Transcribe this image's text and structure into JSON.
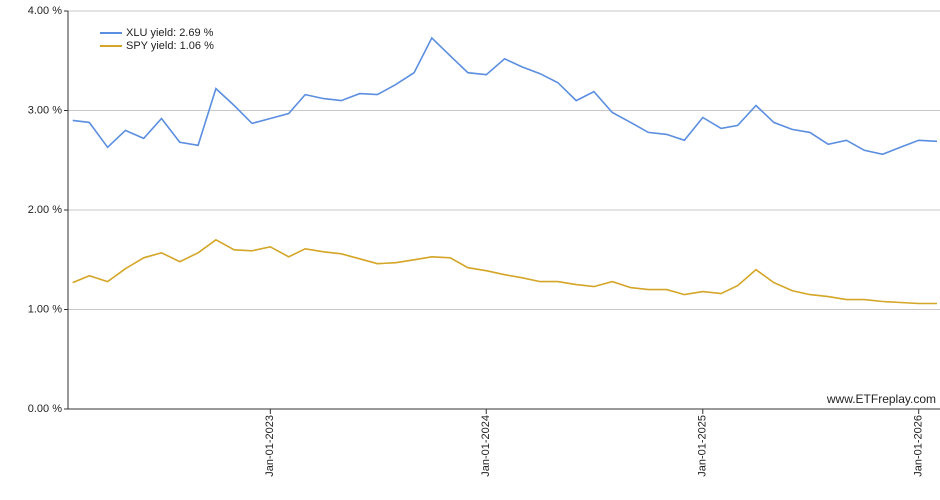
{
  "chart_data": {
    "type": "line",
    "x": [
      "2022-02-01",
      "2022-03-01",
      "2022-04-01",
      "2022-05-01",
      "2022-06-01",
      "2022-07-01",
      "2022-08-01",
      "2022-09-01",
      "2022-10-01",
      "2022-11-01",
      "2022-12-01",
      "2023-01-01",
      "2023-02-01",
      "2023-03-01",
      "2023-04-01",
      "2023-05-01",
      "2023-06-01",
      "2023-07-01",
      "2023-08-01",
      "2023-09-01",
      "2023-10-01",
      "2023-11-01",
      "2023-12-01",
      "2024-01-01",
      "2024-02-01",
      "2024-03-01",
      "2024-04-01",
      "2024-05-01",
      "2024-06-01",
      "2024-07-01",
      "2024-08-01",
      "2024-09-01",
      "2024-10-01",
      "2024-11-01",
      "2024-12-01",
      "2025-01-01",
      "2025-02-01",
      "2025-03-01",
      "2025-04-01",
      "2025-05-01",
      "2025-06-01",
      "2025-07-01",
      "2025-08-01",
      "2025-09-01",
      "2025-10-01",
      "2025-11-01",
      "2025-12-01",
      "2026-01-01",
      "2026-02-01"
    ],
    "series": [
      {
        "name": "XLU yield: 2.69 %",
        "color": "#5b8ee0",
        "values": [
          2.9,
          2.88,
          2.63,
          2.8,
          2.72,
          2.92,
          2.68,
          2.65,
          3.22,
          3.05,
          2.87,
          2.92,
          2.97,
          3.16,
          3.12,
          3.1,
          3.17,
          3.16,
          3.26,
          3.38,
          3.73,
          3.55,
          3.38,
          3.36,
          3.52,
          3.44,
          3.37,
          3.28,
          3.1,
          3.19,
          2.98,
          2.88,
          2.78,
          2.76,
          2.7,
          2.93,
          2.82,
          2.85,
          3.05,
          2.88,
          2.81,
          2.78,
          2.66,
          2.7,
          2.6,
          2.56,
          2.63,
          2.7,
          2.69
        ]
      },
      {
        "name": "SPY yield: 1.06 %",
        "color": "#d4a526",
        "values": [
          1.27,
          1.34,
          1.28,
          1.41,
          1.52,
          1.57,
          1.48,
          1.57,
          1.7,
          1.6,
          1.59,
          1.63,
          1.53,
          1.61,
          1.58,
          1.56,
          1.51,
          1.46,
          1.47,
          1.5,
          1.53,
          1.52,
          1.42,
          1.39,
          1.35,
          1.32,
          1.28,
          1.28,
          1.25,
          1.23,
          1.28,
          1.22,
          1.2,
          1.2,
          1.15,
          1.18,
          1.16,
          1.24,
          1.4,
          1.27,
          1.19,
          1.15,
          1.13,
          1.1,
          1.1,
          1.08,
          1.07,
          1.06,
          1.06
        ]
      }
    ],
    "xlim": [
      "2022-01-24",
      "2026-02-06"
    ],
    "xticks": [
      {
        "value": "2023-01-01",
        "label": "Jan-01-2023"
      },
      {
        "value": "2024-01-01",
        "label": "Jan-01-2024"
      },
      {
        "value": "2025-01-01",
        "label": "Jan-01-2025"
      },
      {
        "value": "2026-01-01",
        "label": "Jan-01-2026"
      }
    ],
    "ylim": [
      0,
      4
    ],
    "yticks": [
      {
        "value": 0,
        "label": "0.00 %"
      },
      {
        "value": 1,
        "label": "1.00 %"
      },
      {
        "value": 2,
        "label": "2.00 %"
      },
      {
        "value": 3,
        "label": "3.00 %"
      },
      {
        "value": 4,
        "label": "4.00 %"
      }
    ],
    "grid": true,
    "legend": "top-left",
    "annotation": "www.ETFreplay.com"
  }
}
